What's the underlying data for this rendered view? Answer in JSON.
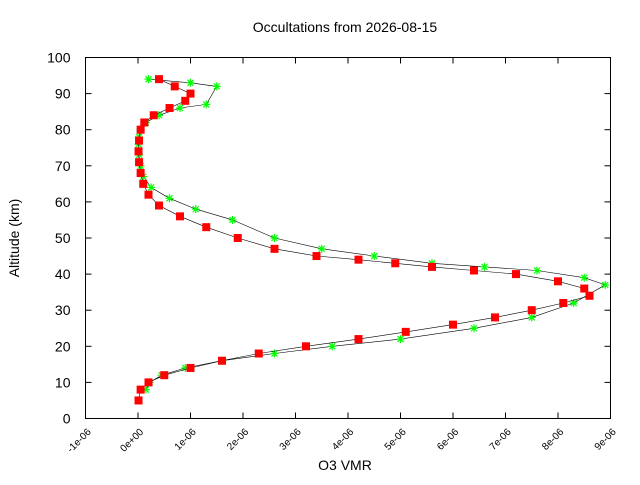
{
  "chart_data": {
    "type": "scatter",
    "title": "Occultations from 2026-08-15",
    "xlabel": "O3 VMR",
    "ylabel": "Altitude (km)",
    "xlim": [
      -1e-06,
      9e-06
    ],
    "ylim": [
      0,
      100
    ],
    "x_ticks": [
      -1e-06,
      0,
      1e-06,
      2e-06,
      3e-06,
      4e-06,
      5e-06,
      6e-06,
      7e-06,
      8e-06,
      9e-06
    ],
    "x_tick_labels": [
      "-1e-06",
      "0e+00",
      "1e-06",
      "2e-06",
      "3e-06",
      "4e-06",
      "5e-06",
      "6e-06",
      "7e-06",
      "8e-06",
      "9e-06"
    ],
    "y_ticks": [
      0,
      10,
      20,
      30,
      40,
      50,
      60,
      70,
      80,
      90,
      100
    ],
    "y_tick_labels": [
      "0",
      "10",
      "20",
      "30",
      "40",
      "50",
      "60",
      "70",
      "80",
      "90",
      "100"
    ],
    "grid": false,
    "legend": "none",
    "series": [
      {
        "marker": "star",
        "color": "#00ff00",
        "x": [
          1.5e-07,
          2.2e-07,
          4.5e-07,
          9e-07,
          1.6e-06,
          2.6e-06,
          3.7e-06,
          5e-06,
          6.4e-06,
          7.5e-06,
          8.3e-06,
          8.9e-06,
          8.5e-06,
          7.6e-06,
          6.6e-06,
          5.6e-06,
          4.5e-06,
          3.5e-06,
          2.6e-06,
          1.8e-06,
          1.1e-06,
          6e-07,
          2.5e-07,
          1e-07,
          5e-08,
          2e-08,
          1e-08,
          2e-08,
          5e-08,
          1.5e-07,
          4e-07,
          8e-07,
          1.3e-06,
          1.5e-06,
          1e-06,
          2e-07
        ],
        "y": [
          8,
          10,
          12,
          14,
          16,
          18,
          20,
          22,
          25,
          28,
          32,
          37,
          39,
          41,
          42,
          43,
          45,
          47,
          50,
          55,
          58,
          61,
          64,
          67,
          70,
          73,
          76,
          78,
          80,
          82,
          84,
          86,
          87,
          92,
          93,
          94
        ]
      },
      {
        "marker": "square",
        "color": "#ff0000",
        "x": [
          1e-08,
          5e-08,
          2e-07,
          5e-07,
          1e-06,
          1.6e-06,
          2.3e-06,
          3.2e-06,
          4.2e-06,
          5.1e-06,
          6e-06,
          6.8e-06,
          7.5e-06,
          8.1e-06,
          8.6e-06,
          8.5e-06,
          8e-06,
          7.2e-06,
          6.4e-06,
          5.6e-06,
          4.9e-06,
          4.2e-06,
          3.4e-06,
          2.6e-06,
          1.9e-06,
          1.3e-06,
          8e-07,
          4e-07,
          2e-07,
          1e-07,
          5e-08,
          2e-08,
          1e-08,
          2e-08,
          5e-08,
          1.2e-07,
          3e-07,
          6e-07,
          9e-07,
          1e-06,
          7e-07,
          4e-07
        ],
        "y": [
          5,
          8,
          10,
          12,
          14,
          16,
          18,
          20,
          22,
          24,
          26,
          28,
          30,
          32,
          34,
          36,
          38,
          40,
          41,
          42,
          43,
          44,
          45,
          47,
          50,
          53,
          56,
          59,
          62,
          65,
          68,
          71,
          74,
          77,
          80,
          82,
          84,
          86,
          88,
          90,
          92,
          94
        ]
      }
    ]
  }
}
